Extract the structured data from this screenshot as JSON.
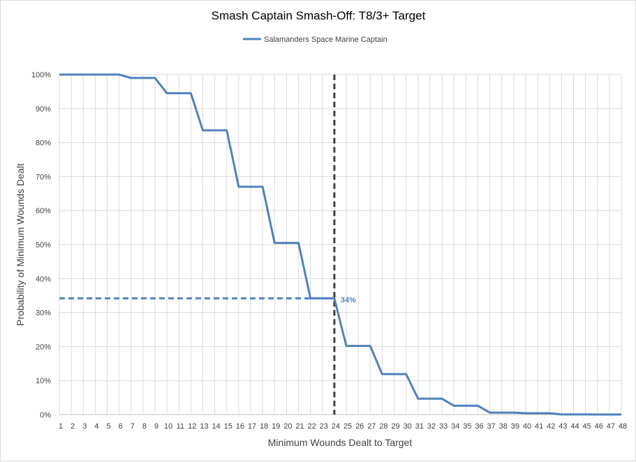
{
  "chart_data": {
    "type": "line",
    "title": "Smash Captain Smash-Off: T8/3+ Target",
    "xlabel": "Minimum Wounds Dealt  to Target",
    "ylabel": "Probability of Minimum Wounds Dealt",
    "x": [
      1,
      2,
      3,
      4,
      5,
      6,
      7,
      8,
      9,
      10,
      11,
      12,
      13,
      14,
      15,
      16,
      17,
      18,
      19,
      20,
      21,
      22,
      23,
      24,
      25,
      26,
      27,
      28,
      29,
      30,
      31,
      32,
      33,
      34,
      35,
      36,
      37,
      38,
      39,
      40,
      41,
      42,
      43,
      44,
      45,
      46,
      47,
      48
    ],
    "series": [
      {
        "name": "Salamanders Space Marine Captain",
        "color": "#4f81bd",
        "values": [
          100,
          100,
          100,
          100,
          100,
          100,
          99,
          99,
          99,
          94.5,
          94.5,
          94.5,
          83.6,
          83.6,
          83.6,
          67,
          67,
          67,
          50.5,
          50.5,
          50.5,
          34.2,
          34.2,
          34.2,
          20.2,
          20.2,
          20.2,
          11.9,
          11.9,
          11.9,
          4.7,
          4.7,
          4.7,
          2.6,
          2.6,
          2.6,
          0.6,
          0.6,
          0.6,
          0.4,
          0.4,
          0.4,
          0.05,
          0.05,
          0.05,
          0.02,
          0.02,
          0.02
        ]
      }
    ],
    "ylim": [
      0,
      100
    ],
    "yticks": [
      "0%",
      "10%",
      "20%",
      "30%",
      "40%",
      "50%",
      "60%",
      "70%",
      "80%",
      "90%",
      "100%"
    ],
    "xticks": [
      "1",
      "2",
      "3",
      "4",
      "5",
      "6",
      "7",
      "8",
      "9",
      "10",
      "11",
      "12",
      "13",
      "14",
      "15",
      "16",
      "17",
      "18",
      "19",
      "20",
      "21",
      "22",
      "23",
      "24",
      "25",
      "26",
      "27",
      "28",
      "29",
      "30",
      "31",
      "32",
      "33",
      "34",
      "35",
      "36",
      "37",
      "38",
      "39",
      "40",
      "41",
      "42",
      "43",
      "44",
      "45",
      "46",
      "47",
      "48"
    ],
    "grid": true,
    "legend_position": "top",
    "reference_lines": {
      "vertical_x": 24,
      "vertical_color": "#404040",
      "horizontal_y": 34.2,
      "horizontal_color": "#4f81bd"
    },
    "annotation": {
      "text": "34%",
      "x": 24,
      "y": 34.2,
      "color": "#4f81bd"
    }
  }
}
